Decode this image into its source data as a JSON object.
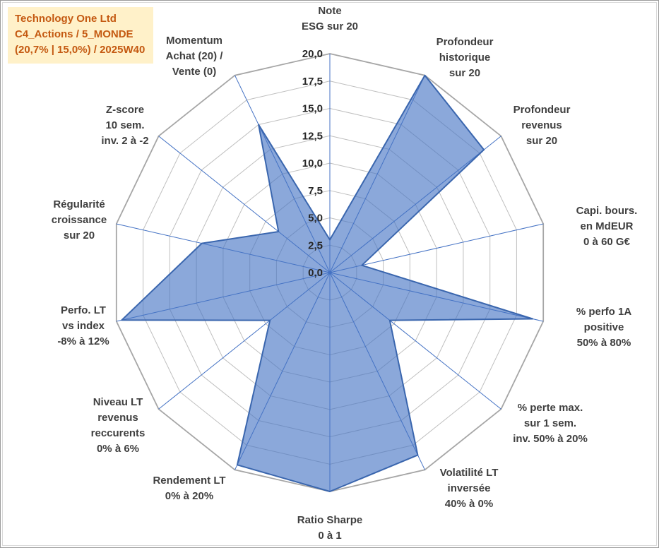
{
  "title_box": {
    "line1": "Technology One Ltd",
    "line2": "C4_Actions / 5_MONDE",
    "line3": "(20,7% | 15,0%) / 2025W40",
    "bg_color": "#FFF1C9",
    "text_color": "#C45911"
  },
  "chart_data": {
    "type": "radar",
    "title": "Technology One Ltd",
    "rmin": 0,
    "rmax": 20,
    "ring_step": 2.5,
    "tick_labels": [
      "0,0",
      "2,5",
      "5,0",
      "7,5",
      "10,0",
      "12,5",
      "15,0",
      "17,5",
      "20,0"
    ],
    "categories": [
      {
        "label_lines": [
          "Note",
          "ESG sur 20"
        ]
      },
      {
        "label_lines": [
          "Profondeur",
          "historique",
          "sur 20"
        ]
      },
      {
        "label_lines": [
          "Profondeur",
          "revenus",
          "sur 20"
        ]
      },
      {
        "label_lines": [
          "Capi. bours.",
          "en MdEUR",
          "0 à 60 G€"
        ]
      },
      {
        "label_lines": [
          "% perfo 1A",
          "positive",
          "50% à 80%"
        ]
      },
      {
        "label_lines": [
          "% perte max.",
          "sur 1 sem.",
          "inv. 50% à 20%"
        ]
      },
      {
        "label_lines": [
          "Volatilité LT",
          "inversée",
          "40% à 0%"
        ]
      },
      {
        "label_lines": [
          "Ratio Sharpe",
          "0 à 1"
        ]
      },
      {
        "label_lines": [
          "Rendement LT",
          "0% à 20%"
        ]
      },
      {
        "label_lines": [
          "Niveau LT",
          "revenus",
          "reccurents",
          "0% à 6%"
        ]
      },
      {
        "label_lines": [
          "Perfo. LT",
          "vs index",
          "-8% à 12%"
        ]
      },
      {
        "label_lines": [
          "Régularité",
          "croissance",
          "sur 20"
        ]
      },
      {
        "label_lines": [
          "Z-score",
          "10 sem.",
          "inv. 2 à -2"
        ]
      },
      {
        "label_lines": [
          "Momentum",
          "Achat (20) /",
          "Vente (0)"
        ]
      }
    ],
    "series": [
      {
        "name": "Technology One Ltd",
        "values": [
          3,
          20,
          18,
          3,
          19,
          7,
          18.5,
          20,
          19.5,
          7,
          19.5,
          12,
          6,
          15
        ]
      }
    ],
    "colors": {
      "grid": "#BFBFBF",
      "outer_ring": "#A6A6A6",
      "spoke": "#4472C4",
      "fill": "#4472C4",
      "fill_opacity": 0.62,
      "stroke": "#3A66AE",
      "axis_label": "#3F3F3F",
      "tick_label": "#262626"
    },
    "legend": "none",
    "grid": "on"
  }
}
